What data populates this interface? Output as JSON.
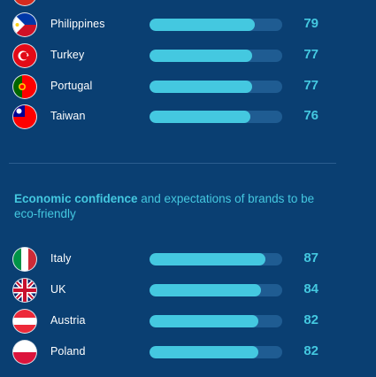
{
  "sections": [
    {
      "title_bold": "",
      "title_rest": "",
      "rows": [
        {
          "country": "Philippines",
          "value": 79,
          "flag": "flag-philippines-icon"
        },
        {
          "country": "Turkey",
          "value": 77,
          "flag": "flag-turkey-icon"
        },
        {
          "country": "Portugal",
          "value": 77,
          "flag": "flag-portugal-icon"
        },
        {
          "country": "Taiwan",
          "value": 76,
          "flag": "flag-taiwan-icon"
        }
      ]
    },
    {
      "title_bold": "Economic confidence",
      "title_rest": " and expectations of brands to be eco-friendly",
      "rows": [
        {
          "country": "Italy",
          "value": 87,
          "flag": "flag-italy-icon"
        },
        {
          "country": "UK",
          "value": 84,
          "flag": "flag-uk-icon"
        },
        {
          "country": "Austria",
          "value": 82,
          "flag": "flag-austria-icon"
        },
        {
          "country": "Poland",
          "value": 82,
          "flag": "flag-poland-icon"
        }
      ]
    }
  ],
  "chart_data": {
    "type": "bar",
    "orientation": "horizontal",
    "series": [
      {
        "categories": [
          "Philippines",
          "Turkey",
          "Portugal",
          "Taiwan"
        ],
        "values": [
          79,
          77,
          77,
          76
        ]
      },
      {
        "categories": [
          "Italy",
          "UK",
          "Austria",
          "Poland"
        ],
        "values": [
          87,
          84,
          82,
          82
        ]
      }
    ],
    "xlim": [
      0,
      100
    ]
  },
  "colors": {
    "background": "#0a3f72",
    "bar_fill": "#44c8e0",
    "bar_track": "#1f5c92",
    "text": "#ffffff",
    "accent": "#44c8e0"
  }
}
